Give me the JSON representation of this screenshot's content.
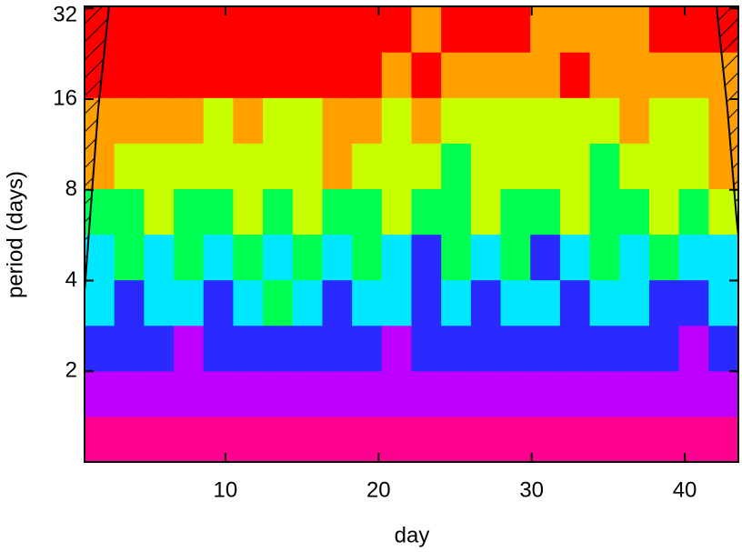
{
  "chart_data": {
    "type": "heatmap",
    "xlabel": "day",
    "ylabel": "period (days)",
    "xlim": [
      0.8,
      43.5
    ],
    "xticks": [
      10,
      20,
      30,
      40
    ],
    "ylim": [
      1,
      32.5
    ],
    "yticks": [
      2,
      4,
      8,
      16,
      32
    ],
    "log_y": true,
    "level_colors": [
      "#ff0090",
      "#c000ff",
      "#2a2aff",
      "#00e8ff",
      "#00ff50",
      "#c8ff00",
      "#ffa000",
      "#ff0000"
    ],
    "z": [
      [
        0,
        0,
        0,
        0,
        0,
        0,
        0,
        0,
        0,
        0,
        0,
        0,
        0,
        0,
        0,
        0,
        0,
        0,
        0,
        0,
        0,
        0
      ],
      [
        1,
        1,
        1,
        1,
        1,
        1,
        1,
        1,
        1,
        1,
        1,
        1,
        1,
        1,
        1,
        1,
        1,
        1,
        1,
        1,
        1,
        1
      ],
      [
        2,
        2,
        2,
        1,
        2,
        2,
        2,
        2,
        2,
        2,
        1,
        2,
        2,
        2,
        2,
        2,
        2,
        2,
        2,
        2,
        1,
        2
      ],
      [
        3,
        2,
        3,
        3,
        2,
        3,
        4,
        3,
        2,
        3,
        3,
        2,
        3,
        2,
        3,
        3,
        2,
        3,
        3,
        2,
        2,
        3
      ],
      [
        3,
        4,
        3,
        4,
        3,
        4,
        3,
        4,
        3,
        4,
        3,
        2,
        4,
        3,
        4,
        2,
        3,
        4,
        3,
        4,
        3,
        3
      ],
      [
        4,
        4,
        5,
        4,
        4,
        5,
        4,
        5,
        4,
        4,
        5,
        4,
        4,
        5,
        4,
        4,
        5,
        4,
        4,
        5,
        4,
        5
      ],
      [
        6,
        5,
        5,
        5,
        5,
        5,
        5,
        5,
        6,
        5,
        5,
        5,
        4,
        5,
        5,
        5,
        5,
        4,
        5,
        5,
        5,
        6
      ],
      [
        6,
        6,
        6,
        6,
        5,
        6,
        5,
        5,
        6,
        6,
        5,
        6,
        5,
        5,
        5,
        5,
        5,
        5,
        6,
        5,
        5,
        6
      ],
      [
        7,
        7,
        7,
        7,
        7,
        7,
        7,
        7,
        7,
        7,
        6,
        7,
        6,
        6,
        6,
        6,
        7,
        6,
        6,
        6,
        6,
        6
      ],
      [
        7,
        7,
        7,
        7,
        7,
        7,
        7,
        7,
        7,
        7,
        7,
        6,
        7,
        7,
        7,
        6,
        6,
        6,
        6,
        7,
        7,
        7
      ]
    ]
  }
}
